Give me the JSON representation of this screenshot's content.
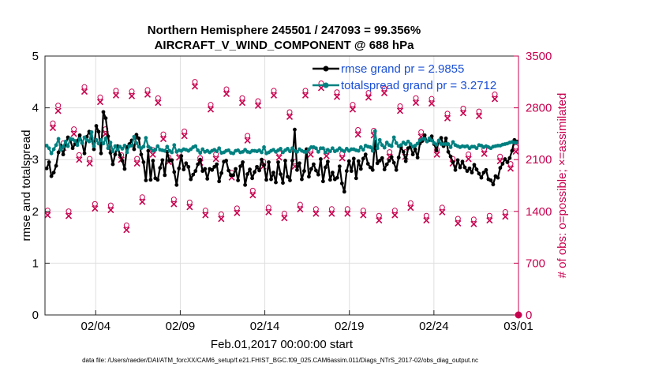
{
  "chart_data": {
    "type": "line",
    "title": [
      "Northern Hemisphere 245501 / 247093 = 99.356%",
      "AIRCRAFT_V_WIND_COMPONENT @ 688 hPa"
    ],
    "xlabel": "Feb.01,2017 00:00:00 start",
    "ylabel": "rmse and totalspread",
    "ylabel_right": "# of obs: o=possible; ×=assimilated",
    "footer": "data file: /Users/raeder/DAI/ATM_forcXX/CAM6_setup/f.e21.FHIST_BGC.f09_025.CAM6assim.011/Diags_NTrS_2017-02/obs_diag_output.nc",
    "xlim": [
      0.5,
      28.5
    ],
    "ylim": [
      0,
      5
    ],
    "ylim_right": [
      0,
      3500
    ],
    "x_ticks": [
      3.5,
      8.5,
      13.5,
      18.5,
      23.5,
      28.5
    ],
    "x_tick_labels": [
      "02/04",
      "02/09",
      "02/14",
      "02/19",
      "02/24",
      "03/01"
    ],
    "y_ticks": [
      0,
      1,
      2,
      3,
      4,
      5
    ],
    "y_tick_labels": [
      "0",
      "1",
      "2",
      "3",
      "4",
      "5"
    ],
    "y_right_ticks": [
      0,
      700,
      1400,
      2100,
      2800,
      3500
    ],
    "y_right_tick_labels": [
      "0",
      "700",
      "1400",
      "2100",
      "2800",
      "3500"
    ],
    "grid": true,
    "legend_position": "top-right",
    "colors": {
      "rmse": "#000000",
      "spread": "#008080",
      "obs": "#c8004e",
      "legend_text": "#1a4fd6"
    },
    "series": [
      {
        "name": "rmse",
        "legend": "rmse grand pr = 2.9855",
        "values": [
          2.83,
          2.95,
          2.68,
          2.75,
          2.88,
          3.14,
          3.27,
          3.1,
          3.3,
          3.43,
          3.38,
          3.22,
          3.3,
          3.36,
          3.47,
          3.32,
          3.12,
          3.44,
          3.54,
          3.42,
          3.2,
          3.65,
          3.54,
          3.12,
          3.92,
          3.8,
          3.45,
          3.13,
          2.91,
          3.1,
          3.26,
          3.09,
          2.98,
          2.82,
          3.24,
          3.3,
          3.37,
          3.2,
          3.48,
          3.41,
          3.1,
          2.95,
          2.6,
          3.17,
          2.61,
          2.98,
          2.64,
          2.61,
          2.84,
          2.99,
          2.7,
          3.15,
          2.98,
          2.99,
          2.76,
          2.51,
          2.83,
          3.07,
          2.81,
          2.93,
          2.86,
          2.62,
          2.71,
          2.78,
          2.91,
          3.0,
          2.78,
          2.82,
          2.63,
          2.82,
          2.8,
          2.86,
          2.91,
          2.58,
          2.74,
          2.96,
          2.98,
          2.79,
          2.7,
          2.7,
          2.82,
          2.6,
          2.87,
          2.95,
          2.51,
          2.72,
          2.81,
          2.64,
          2.76,
          2.86,
          2.79,
          3.0,
          2.89,
          2.61,
          2.95,
          2.62,
          2.75,
          2.56,
          2.95,
          2.72,
          2.55,
          2.98,
          2.67,
          2.6,
          2.98,
          3.58,
          2.8,
          2.93,
          2.62,
          2.78,
          3.2,
          2.67,
          2.82,
          2.91,
          2.79,
          2.71,
          3.01,
          2.58,
          2.85,
          2.96,
          2.61,
          2.75,
          2.62,
          2.65,
          2.87,
          2.54,
          2.38,
          2.78,
          2.97,
          2.78,
          3.02,
          2.64,
          2.97,
          2.82,
          3.02,
          3.1,
          2.92,
          2.85,
          2.8,
          3.35,
          2.93,
          2.98,
          3.03,
          2.81,
          2.91,
          2.98,
          3.05,
          2.94,
          2.8,
          3.04,
          3.24,
          3.15,
          2.97,
          3.22,
          3.25,
          3.1,
          3.2,
          3.04,
          3.31,
          3.36,
          3.47,
          3.35,
          3.38,
          3.45,
          3.3,
          3.18,
          3.35,
          3.42,
          3.26,
          3.41,
          3.15,
          3.06,
          2.95,
          2.8,
          2.99,
          2.85,
          2.96,
          2.85,
          2.78,
          2.83,
          2.75,
          2.9,
          2.81,
          2.73,
          2.65,
          2.75,
          2.8,
          2.62,
          2.6,
          2.52,
          2.68,
          2.65,
          2.84,
          2.92,
          3.01,
          2.95,
          3.03,
          3.17,
          3.38,
          3.35
        ]
      },
      {
        "name": "totalspread",
        "legend": "totalspread grand pr = 3.2712",
        "values": [
          3.27,
          3.22,
          3.12,
          3.2,
          3.28,
          3.4,
          3.19,
          3.25,
          3.35,
          3.26,
          3.4,
          3.39,
          3.36,
          3.28,
          3.4,
          3.32,
          3.43,
          3.38,
          3.35,
          3.53,
          3.26,
          3.38,
          3.31,
          3.38,
          3.31,
          3.41,
          3.22,
          3.33,
          3.16,
          3.26,
          3.19,
          3.25,
          3.21,
          3.27,
          3.14,
          3.26,
          3.27,
          3.44,
          3.32,
          3.25,
          3.22,
          3.25,
          3.42,
          3.25,
          3.22,
          3.17,
          3.19,
          3.26,
          3.19,
          3.18,
          3.17,
          3.25,
          3.17,
          3.14,
          3.28,
          3.15,
          3.18,
          3.17,
          3.2,
          3.19,
          3.17,
          3.2,
          3.24,
          3.26,
          3.18,
          3.13,
          3.2,
          3.15,
          3.17,
          3.14,
          3.17,
          3.19,
          3.16,
          3.22,
          3.13,
          3.14,
          3.17,
          3.18,
          3.13,
          3.12,
          3.17,
          3.18,
          3.14,
          3.15,
          3.19,
          3.15,
          3.14,
          3.17,
          3.17,
          3.16,
          3.18,
          3.14,
          3.24,
          3.12,
          3.14,
          3.17,
          3.19,
          3.15,
          3.18,
          3.21,
          3.14,
          3.18,
          3.21,
          3.16,
          3.22,
          3.17,
          3.15,
          3.2,
          3.17,
          3.15,
          3.15,
          3.2,
          3.24,
          3.24,
          3.22,
          3.15,
          3.22,
          3.22,
          3.14,
          3.19,
          3.16,
          3.22,
          3.16,
          3.18,
          3.22,
          3.18,
          3.16,
          3.21,
          3.17,
          3.2,
          3.2,
          3.18,
          3.17,
          3.24,
          3.19,
          3.27,
          3.25,
          3.24,
          3.17,
          3.55,
          3.22,
          3.38,
          3.28,
          3.23,
          3.33,
          3.28,
          3.26,
          3.43,
          3.32,
          3.26,
          3.28,
          3.33,
          3.3,
          3.35,
          3.3,
          3.25,
          3.27,
          3.31,
          3.37,
          3.4,
          3.4,
          3.35,
          3.41,
          3.37,
          3.32,
          3.29,
          3.37,
          3.3,
          3.3,
          3.3,
          3.3,
          3.24,
          3.34,
          3.28,
          3.26,
          3.24,
          3.26,
          3.25,
          3.26,
          3.22,
          3.25,
          3.25,
          3.22,
          3.28,
          3.27,
          3.24,
          3.26,
          3.24,
          3.22,
          3.25,
          3.26,
          3.27,
          3.27,
          3.29,
          3.3,
          3.31,
          3.33,
          3.34,
          3.33,
          3.33
        ]
      }
    ],
    "obs_possible": {
      "name": "# of obs possible",
      "values": [
        1380,
        2560,
        2800,
        2290,
        1370,
        2480,
        2130,
        3050,
        2080,
        1470,
        2910,
        2480,
        1450,
        3000,
        2130,
        1180,
        2990,
        2080,
        1560,
        3010,
        2200,
        2900,
        2410,
        2100,
        1530,
        2160,
        2450,
        1490,
        3120,
        2090,
        1380,
        2810,
        2140,
        1330,
        3020,
        1890,
        1410,
        2900,
        2390,
        1650,
        2860,
        2040,
        1420,
        3000,
        2160,
        1340,
        2710,
        2040,
        1460,
        3000,
        2200,
        1400,
        3100,
        2180,
        1400,
        2980,
        2150,
        1400,
        2810,
        2470,
        1380,
        2970,
        2460,
        1310,
        3030,
        2170,
        1380,
        2790,
        2170,
        1480,
        2900,
        2440,
        1310,
        2890,
        2200,
        1420,
        2690,
        2080,
        1270,
        2760,
        2140,
        1260,
        2720,
        2210,
        1310,
        2950,
        2110,
        1360,
        2010,
        2240
      ]
    },
    "obs_assimilated": {
      "name": "# of obs assimilated",
      "values": [
        1370,
        2550,
        2780,
        2280,
        1360,
        2470,
        2120,
        3040,
        2070,
        1460,
        2900,
        2470,
        1440,
        2990,
        2120,
        1170,
        2980,
        2070,
        1550,
        3000,
        2190,
        2890,
        2400,
        2090,
        1520,
        2150,
        2440,
        1480,
        3110,
        2080,
        1370,
        2800,
        2130,
        1320,
        3010,
        1880,
        1400,
        2890,
        2380,
        1640,
        2850,
        2030,
        1410,
        2990,
        2150,
        1330,
        2700,
        2030,
        1450,
        2990,
        2190,
        1390,
        3090,
        2170,
        1390,
        2970,
        2140,
        1390,
        2800,
        2460,
        1370,
        2960,
        2450,
        1300,
        3020,
        2160,
        1370,
        2780,
        2160,
        1470,
        2890,
        2430,
        1300,
        2880,
        2190,
        1410,
        2680,
        2070,
        1260,
        2750,
        2130,
        1250,
        2710,
        2200,
        1300,
        2940,
        2100,
        1350,
        2000,
        2230
      ]
    },
    "obs_final": {
      "x": 28.5,
      "value": 0
    }
  }
}
